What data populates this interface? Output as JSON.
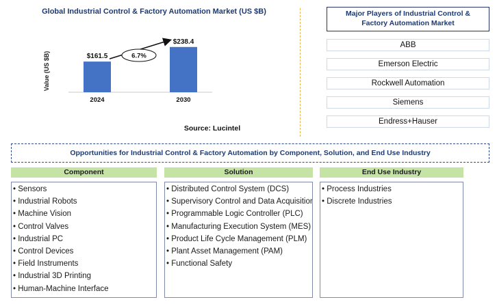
{
  "chart_data": {
    "type": "bar",
    "title": "Global Industrial Control & Factory Automation Market (US $B)",
    "categories": [
      "2024",
      "2030"
    ],
    "values": [
      161.5,
      238.4
    ],
    "value_labels": [
      "$161.5",
      "$238.4"
    ],
    "ylabel": "Value (US $B)",
    "xlabel": "",
    "ylim": [
      0,
      300
    ],
    "grid": false,
    "bar_color": "#4472c4",
    "growth_label": "6.7%",
    "source": "Source: Lucintel"
  },
  "players": {
    "title": "Major Players of Industrial Control & Factory Automation Market",
    "items": [
      "ABB",
      "Emerson Electric",
      "Rockwell Automation",
      "Siemens",
      "Endress+Hauser"
    ]
  },
  "opportunities": {
    "title": "Opportunities for Industrial Control & Factory Automation by Component, Solution, and End Use Industry",
    "columns": [
      {
        "header": "Component",
        "items": [
          "Sensors",
          "Industrial Robots",
          "Machine Vision",
          "Control Valves",
          "Industrial PC",
          "Control Devices",
          "Field Instruments",
          "Industrial 3D Printing",
          "Human-Machine Interface"
        ]
      },
      {
        "header": "Solution",
        "items": [
          "Distributed Control System (DCS)",
          "Supervisory Control and Data Acquisition",
          "Programmable Logic Controller (PLC)",
          "Manufacturing Execution System (MES)",
          "Product Life Cycle Management (PLM)",
          "Plant Asset Management (PAM)",
          "Functional Safety"
        ]
      },
      {
        "header": "End Use Industry",
        "items": [
          "Process Industries",
          "Discrete Industries"
        ]
      }
    ]
  },
  "colors": {
    "title_blue": "#1f3a70",
    "header_green": "#c6e3a6",
    "divider_gold": "#e4b84a"
  }
}
